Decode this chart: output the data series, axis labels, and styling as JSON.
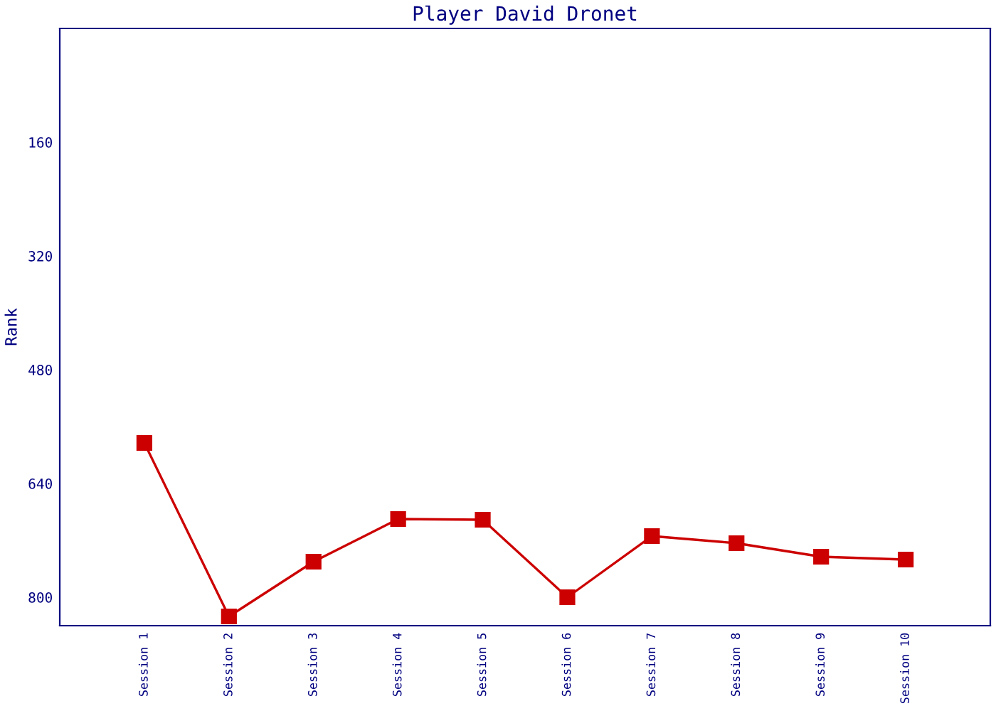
{
  "chart_data": {
    "type": "line",
    "title": "Player David Dronet",
    "ylabel": "Rank",
    "categories": [
      "Session 1",
      "Session 2",
      "Session 3",
      "Session 4",
      "Session 5",
      "Session 6",
      "Session 7",
      "Session 8",
      "Session 9",
      "Session 10"
    ],
    "series": [
      {
        "color": "#cc0000",
        "values": [
          583,
          827,
          750,
          690,
          691,
          800,
          714,
          724,
          743,
          747
        ]
      }
    ],
    "ylim": [
      840,
      0
    ],
    "yticks": [
      160,
      320,
      480,
      640,
      800
    ],
    "grid": false,
    "legend": false,
    "marker": "square",
    "line_style": "solid"
  }
}
